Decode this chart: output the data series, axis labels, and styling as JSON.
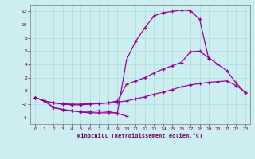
{
  "xlabel": "Windchill (Refroidissement éolien,°C)",
  "line1_x": [
    0,
    1,
    2,
    3,
    4,
    5,
    6,
    7,
    8,
    9,
    10
  ],
  "line1_y": [
    -1.0,
    -1.5,
    -2.5,
    -2.8,
    -3.0,
    -3.1,
    -3.1,
    -3.0,
    -3.1,
    -3.4,
    -3.8
  ],
  "line2_x": [
    0,
    1,
    2,
    3,
    4,
    5,
    6,
    7,
    8,
    9,
    10,
    11,
    12,
    13,
    14,
    15,
    16,
    17,
    18,
    19
  ],
  "line2_y": [
    -1.0,
    -1.5,
    -2.5,
    -2.8,
    -3.0,
    -3.2,
    -3.3,
    -3.3,
    -3.3,
    -3.3,
    4.7,
    7.5,
    9.5,
    11.3,
    11.8,
    12.0,
    12.2,
    12.1,
    10.8,
    4.8
  ],
  "line3_x": [
    0,
    1,
    2,
    3,
    4,
    5,
    6,
    7,
    8,
    9,
    10,
    11,
    12,
    13,
    14,
    15,
    16,
    17,
    18,
    19,
    20,
    21,
    22,
    23
  ],
  "line3_y": [
    -1.0,
    -1.5,
    -1.8,
    -2.0,
    -2.1,
    -2.1,
    -2.0,
    -1.9,
    -1.8,
    -1.5,
    1.0,
    1.5,
    2.0,
    2.7,
    3.3,
    3.8,
    4.3,
    5.9,
    6.0,
    5.0,
    4.0,
    3.0,
    1.2,
    -0.3
  ],
  "line4_x": [
    0,
    1,
    2,
    3,
    4,
    5,
    6,
    7,
    8,
    9,
    10,
    11,
    12,
    13,
    14,
    15,
    16,
    17,
    18,
    19,
    20,
    21,
    22,
    23
  ],
  "line4_y": [
    -1.0,
    -1.5,
    -1.8,
    -1.9,
    -2.0,
    -2.0,
    -1.9,
    -1.9,
    -1.8,
    -1.7,
    -1.5,
    -1.2,
    -0.9,
    -0.5,
    -0.2,
    0.2,
    0.6,
    0.9,
    1.1,
    1.3,
    1.4,
    1.5,
    0.8,
    -0.2
  ],
  "color": "#990099",
  "bg_color": "#cceef0",
  "grid_color": "#aadde0",
  "ylim": [
    -5,
    13
  ],
  "xlim": [
    -0.5,
    23.5
  ],
  "yticks": [
    -4,
    -2,
    0,
    2,
    4,
    6,
    8,
    10,
    12
  ],
  "xticks": [
    0,
    1,
    2,
    3,
    4,
    5,
    6,
    7,
    8,
    9,
    10,
    11,
    12,
    13,
    14,
    15,
    16,
    17,
    18,
    19,
    20,
    21,
    22,
    23
  ]
}
